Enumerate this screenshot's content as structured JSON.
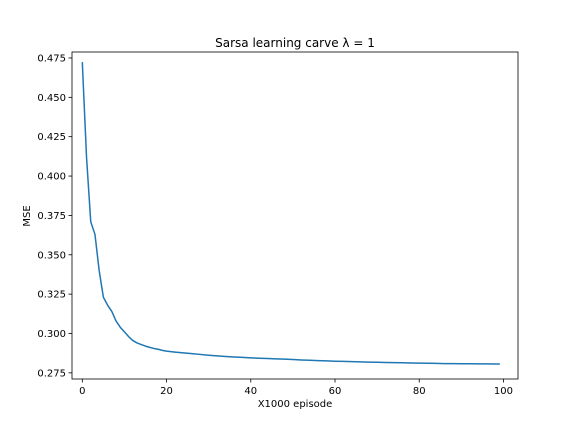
{
  "chart_data": {
    "type": "line",
    "title": "Sarsa learning carve λ = 1",
    "xlabel": "X1000 episode",
    "ylabel": "MSE",
    "xlim": [
      -2.45,
      103.45
    ],
    "ylim": [
      0.2711,
      0.4788
    ],
    "xticks": [
      0,
      20,
      40,
      60,
      80,
      100
    ],
    "yticks": [
      0.275,
      0.3,
      0.325,
      0.35,
      0.375,
      0.4,
      0.425,
      0.45,
      0.475
    ],
    "xtick_labels": [
      "0",
      "20",
      "40",
      "60",
      "80",
      "100"
    ],
    "ytick_labels": [
      "0.275",
      "0.300",
      "0.325",
      "0.350",
      "0.375",
      "0.400",
      "0.425",
      "0.450",
      "0.475"
    ],
    "grid": false,
    "series": [
      {
        "color": "#1f77b4",
        "x": [
          0,
          1,
          2,
          3,
          4,
          5,
          6,
          7,
          8,
          9,
          10,
          11,
          12,
          13,
          14,
          15,
          16,
          17,
          18,
          19,
          20,
          22,
          24,
          26,
          28,
          30,
          32,
          34,
          36,
          38,
          40,
          42,
          44,
          46,
          48,
          50,
          52,
          54,
          56,
          58,
          60,
          62,
          64,
          66,
          68,
          70,
          72,
          74,
          76,
          78,
          80,
          82,
          84,
          86,
          88,
          90,
          92,
          94,
          96,
          98,
          99
        ],
        "y": [
          0.472,
          0.412,
          0.371,
          0.363,
          0.34,
          0.323,
          0.318,
          0.314,
          0.308,
          0.304,
          0.301,
          0.298,
          0.2955,
          0.294,
          0.293,
          0.292,
          0.2912,
          0.2905,
          0.29,
          0.2893,
          0.2888,
          0.2882,
          0.2877,
          0.2872,
          0.2867,
          0.2862,
          0.2858,
          0.2854,
          0.2851,
          0.2848,
          0.2845,
          0.2843,
          0.2841,
          0.2839,
          0.2837,
          0.2835,
          0.2832,
          0.283,
          0.2828,
          0.2826,
          0.2824,
          0.2823,
          0.2821,
          0.282,
          0.2818,
          0.2817,
          0.2816,
          0.2815,
          0.2814,
          0.2813,
          0.2812,
          0.2811,
          0.281,
          0.2809,
          0.2809,
          0.2808,
          0.2808,
          0.2807,
          0.2807,
          0.2806,
          0.2806
        ]
      }
    ]
  }
}
